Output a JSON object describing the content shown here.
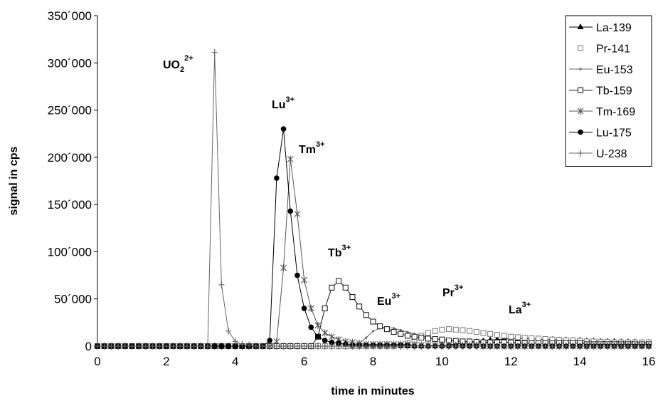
{
  "chart_data": {
    "type": "line",
    "x_label": "time in minutes",
    "y_label": "signal in cps",
    "xlim": [
      0,
      16
    ],
    "xticks": [
      0,
      2,
      4,
      6,
      8,
      10,
      12,
      14,
      16
    ],
    "ylim": [
      0,
      350000
    ],
    "yticks": [
      0,
      {
        "value": 50000,
        "label": "50´000"
      },
      {
        "value": 100000,
        "label": "100´000"
      },
      {
        "value": 150000,
        "label": "150´000"
      },
      {
        "value": 200000,
        "label": "200´000"
      },
      {
        "value": 250000,
        "label": "250´000"
      },
      {
        "value": 300000,
        "label": "300´000"
      },
      {
        "value": 350000,
        "label": "350´000"
      }
    ],
    "grid": false,
    "legend": "top-right",
    "x": [
      0,
      0.2,
      0.4,
      0.6,
      0.8,
      1,
      1.2,
      1.4,
      1.6,
      1.8,
      2,
      2.2,
      2.4,
      2.6,
      2.8,
      3,
      3.2,
      3.4,
      3.6,
      3.8,
      4,
      4.2,
      4.4,
      4.6,
      4.8,
      5,
      5.2,
      5.4,
      5.6,
      5.8,
      6,
      6.2,
      6.4,
      6.6,
      6.8,
      7,
      7.2,
      7.4,
      7.6,
      7.8,
      8,
      8.2,
      8.4,
      8.6,
      8.8,
      9,
      9.2,
      9.4,
      9.6,
      9.8,
      10,
      10.2,
      10.4,
      10.6,
      10.8,
      11,
      11.2,
      11.4,
      11.6,
      11.8,
      12,
      12.2,
      12.4,
      12.6,
      12.8,
      13,
      13.2,
      13.4,
      13.6,
      13.8,
      14,
      14.2,
      14.4,
      14.6,
      14.8,
      15,
      15.2,
      15.4,
      15.6,
      15.8,
      16
    ],
    "series": [
      {
        "name": "La-139",
        "color": "#000000",
        "marker": "triangle",
        "line": true,
        "values": [
          0,
          0,
          0,
          0,
          0,
          0,
          0,
          0,
          0,
          0,
          0,
          0,
          0,
          0,
          0,
          0,
          0,
          0,
          0,
          0,
          0,
          0,
          0,
          0,
          0,
          0,
          0,
          0,
          0,
          0,
          0,
          0,
          0,
          0,
          0,
          0,
          0,
          0,
          0,
          0,
          0,
          0,
          0,
          0,
          0,
          0,
          0,
          0,
          0,
          500,
          1000,
          1500,
          2000,
          3000,
          3500,
          4500,
          5500,
          6500,
          7000,
          7500,
          8000,
          8000,
          8000,
          7500,
          7500,
          7000,
          7000,
          6500,
          6500,
          6000,
          6000,
          5500,
          5500,
          5000,
          5000,
          5000,
          4500,
          4500,
          4500,
          4000,
          4000
        ]
      },
      {
        "name": "Pr-141",
        "color": "#777777",
        "marker": "square-open",
        "line": false,
        "values": [
          0,
          0,
          0,
          0,
          0,
          0,
          0,
          0,
          0,
          0,
          0,
          0,
          0,
          0,
          0,
          0,
          0,
          0,
          0,
          0,
          0,
          0,
          0,
          0,
          0,
          0,
          0,
          0,
          0,
          0,
          0,
          0,
          0,
          0,
          0,
          0,
          0,
          0,
          0,
          0,
          0,
          0,
          0,
          0,
          1000,
          3000,
          7000,
          11000,
          14000,
          16000,
          17500,
          18000,
          17500,
          17000,
          16000,
          15000,
          14000,
          13000,
          12000,
          11000,
          10000,
          9500,
          9000,
          8500,
          8000,
          7500,
          7000,
          6500,
          6000,
          6000,
          5500,
          5000,
          5000,
          4500,
          4500,
          4000,
          4000,
          4000,
          4000,
          4000,
          4000
        ]
      },
      {
        "name": "Eu-153",
        "color": "#666666",
        "marker": "dot",
        "line": true,
        "values": [
          0,
          0,
          0,
          0,
          0,
          0,
          0,
          0,
          0,
          0,
          0,
          0,
          0,
          0,
          0,
          0,
          0,
          0,
          0,
          0,
          0,
          0,
          0,
          0,
          0,
          0,
          0,
          0,
          0,
          0,
          0,
          0,
          0,
          0,
          0,
          0,
          0,
          1000,
          3000,
          9000,
          16000,
          19000,
          20000,
          19000,
          17000,
          15000,
          13000,
          11000,
          9500,
          8000,
          7000,
          6000,
          5500,
          5000,
          4500,
          4000,
          3500,
          3500,
          3500,
          3500,
          3500,
          3000,
          3000,
          3000,
          3000,
          3000,
          3000,
          3000,
          3000,
          3000,
          3000,
          2500,
          2500,
          2500,
          2500,
          2500,
          2500,
          2500,
          2500,
          2500,
          2500
        ]
      },
      {
        "name": "Tb-159",
        "color": "#111111",
        "marker": "square-open",
        "line": true,
        "values": [
          0,
          0,
          0,
          0,
          0,
          0,
          0,
          0,
          0,
          0,
          0,
          0,
          0,
          0,
          0,
          0,
          0,
          0,
          0,
          0,
          0,
          0,
          0,
          0,
          0,
          0,
          0,
          0,
          0,
          0,
          0,
          0,
          10000,
          40000,
          62000,
          69000,
          62000,
          52000,
          42000,
          33000,
          26000,
          21000,
          18000,
          15000,
          13000,
          11000,
          10000,
          9000,
          8000,
          7500,
          7000,
          6000,
          5500,
          5000,
          5000,
          4500,
          4000,
          4000,
          4000,
          4000,
          4000,
          3000,
          3000,
          3000,
          3000,
          3000,
          3000,
          3000,
          3000,
          3000,
          3000,
          2000,
          2000,
          2000,
          2000,
          2000,
          2000,
          2000,
          2000,
          2000,
          2000
        ]
      },
      {
        "name": "Tm-169",
        "color": "#555555",
        "marker": "star",
        "line": true,
        "values": [
          0,
          0,
          0,
          0,
          0,
          0,
          0,
          0,
          0,
          0,
          0,
          0,
          0,
          0,
          0,
          0,
          0,
          0,
          0,
          0,
          0,
          0,
          0,
          0,
          0,
          0,
          5000,
          83000,
          198000,
          140000,
          70000,
          40000,
          22000,
          14000,
          10000,
          7000,
          5000,
          4000,
          3000,
          2000,
          2000,
          2000,
          2000,
          2000,
          2000,
          2000,
          1000,
          1000,
          1000,
          1000,
          1000,
          1000,
          1000,
          1000,
          1000,
          1000,
          0,
          0,
          0,
          0,
          0,
          0,
          0,
          0,
          0,
          0,
          0,
          0,
          0,
          0,
          0,
          0,
          0,
          0,
          0,
          0,
          0,
          0,
          0,
          0,
          0
        ]
      },
      {
        "name": "Lu-175",
        "color": "#000000",
        "marker": "circle",
        "line": true,
        "values": [
          0,
          0,
          0,
          0,
          0,
          0,
          0,
          0,
          0,
          0,
          0,
          0,
          0,
          0,
          0,
          0,
          0,
          0,
          0,
          0,
          0,
          0,
          0,
          0,
          0,
          6000,
          178000,
          230000,
          143000,
          75000,
          40000,
          20000,
          10000,
          6000,
          4000,
          3000,
          2000,
          1000,
          1000,
          1000,
          1000,
          1000,
          1000,
          1000,
          1000,
          1000,
          0,
          0,
          0,
          0,
          0,
          0,
          0,
          0,
          0,
          0,
          0,
          0,
          0,
          0,
          0,
          0,
          0,
          0,
          0,
          0,
          0,
          0,
          0,
          0,
          0,
          0,
          0,
          0,
          0,
          0,
          0,
          0,
          0,
          0,
          0
        ]
      },
      {
        "name": "U-238",
        "color": "#666666",
        "marker": "plus",
        "line": true,
        "values": [
          0,
          0,
          0,
          0,
          0,
          0,
          0,
          0,
          0,
          0,
          0,
          0,
          0,
          0,
          0,
          0,
          0,
          311000,
          65000,
          16000,
          5000,
          2000,
          1000,
          0,
          0,
          0,
          0,
          0,
          0,
          0,
          0,
          0,
          0,
          0,
          0,
          0,
          0,
          0,
          0,
          0,
          0,
          0,
          0,
          0,
          0,
          0,
          0,
          0,
          0,
          0,
          0,
          0,
          0,
          0,
          0,
          0,
          0,
          0,
          0,
          0,
          0,
          0,
          0,
          0,
          0,
          0,
          0,
          0,
          0,
          0,
          0,
          0,
          0,
          0,
          0,
          0,
          0,
          0,
          0,
          0,
          0
        ]
      }
    ],
    "annotations": [
      {
        "text": "UO",
        "sub": "2",
        "sup": "2+"
      },
      {
        "text": "Lu",
        "sup": "3+"
      },
      {
        "text": "Tm",
        "sup": "3+"
      },
      {
        "text": "Tb",
        "sup": "3+"
      },
      {
        "text": "Eu",
        "sup": "3+"
      },
      {
        "text": "Pr",
        "sup": "3+"
      },
      {
        "text": "La",
        "sup": "3+"
      }
    ]
  }
}
